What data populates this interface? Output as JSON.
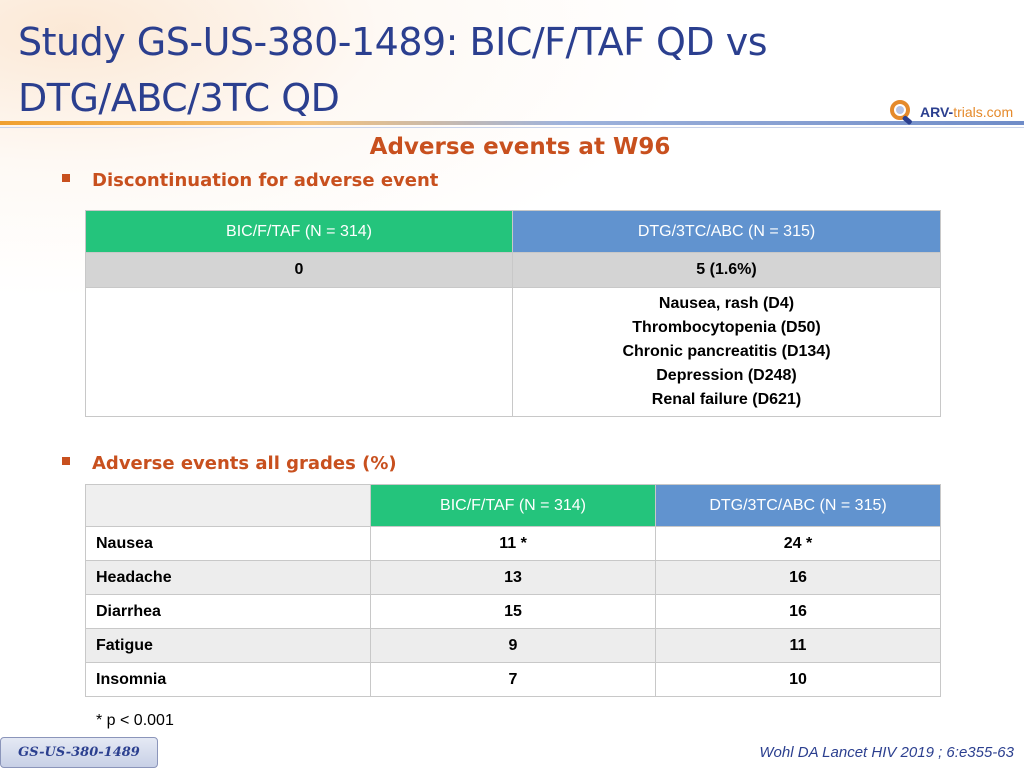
{
  "header": {
    "title_line1": "Study GS-US-380-1489: BIC/F/TAF QD vs",
    "title_line2": "DTG/ABC/3TC QD",
    "logo_text_part1": "ARV-",
    "logo_text_part2": "trials",
    "logo_text_part3": ".com",
    "logo_icon": "magnifier-logo-icon"
  },
  "subtitle": "Adverse events at W96",
  "section1": {
    "bullet": "Discontinuation for adverse event",
    "columns": [
      "BIC/F/TAF (N = 314)",
      "DTG/3TC/ABC (N = 315)"
    ],
    "counts": [
      "0",
      "5 (1.6%)"
    ],
    "events_right": [
      "Nausea, rash (D4)",
      "Thrombocytopenia (D50)",
      "Chronic pancreatitis (D134)",
      "Depression (D248)",
      "Renal failure (D621)"
    ]
  },
  "section2": {
    "bullet": "Adverse events all grades (%)",
    "columns": [
      "BIC/F/TAF (N = 314)",
      "DTG/3TC/ABC (N = 315)"
    ],
    "rows": [
      {
        "label": "Nausea",
        "a": "11 *",
        "b": "24 *"
      },
      {
        "label": "Headache",
        "a": "13",
        "b": "16"
      },
      {
        "label": "Diarrhea",
        "a": "15",
        "b": "16"
      },
      {
        "label": "Fatigue",
        "a": "9",
        "b": "11"
      },
      {
        "label": "Insomnia",
        "a": "7",
        "b": "10"
      }
    ]
  },
  "footnote": "* p < 0.001",
  "study_tag": "GS-US-380-1489",
  "reference": "Wohl DA Lancet HIV 2019 ; 6:e355-63",
  "colors": {
    "title": "#2b3f8f",
    "accent": "#c8501e",
    "green_header": "#24c47c",
    "blue_header": "#6193cf"
  }
}
